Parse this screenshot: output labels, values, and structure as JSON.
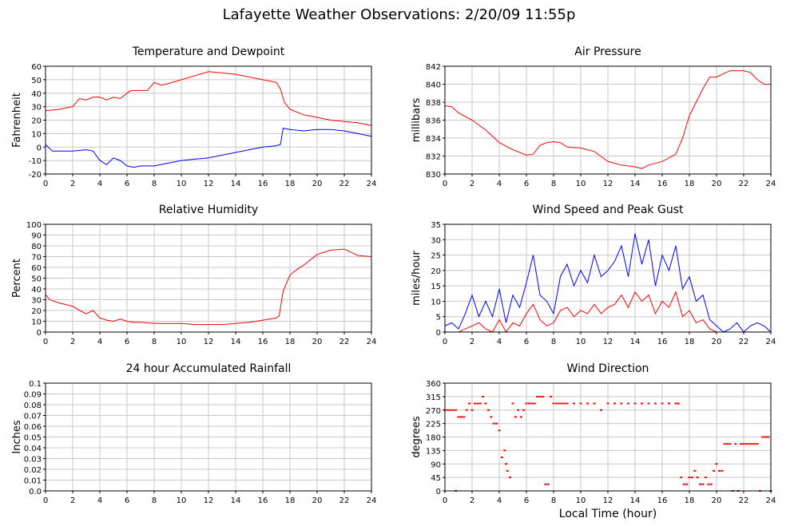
{
  "title": "Lafayette Weather Observations: 2/20/09 11:55p",
  "xlabel": "Local Time (hour)",
  "chart_data": [
    {
      "type": "line",
      "title": "Temperature and Dewpoint",
      "ylabel": "Fahrenheit",
      "xlim": [
        0,
        24
      ],
      "ylim": [
        -20,
        60
      ],
      "xticks": [
        0,
        2,
        4,
        6,
        8,
        10,
        12,
        14,
        16,
        18,
        20,
        22,
        24
      ],
      "yticks": [
        -20,
        -10,
        0,
        10,
        20,
        30,
        40,
        50,
        60
      ],
      "grid": true,
      "series": [
        {
          "color": "#ff0000",
          "x": [
            0,
            1,
            2,
            2.5,
            3,
            3.5,
            4,
            4.5,
            5,
            5.5,
            6,
            6.3,
            7,
            7.5,
            8,
            8.5,
            9,
            10,
            11,
            12,
            13,
            14,
            15,
            16,
            17,
            17.3,
            17.6,
            18,
            19,
            20,
            21,
            22,
            23,
            24
          ],
          "y": [
            27,
            28,
            30,
            36,
            35,
            37,
            37,
            35,
            37,
            36,
            40,
            42,
            42,
            42,
            48,
            46,
            47,
            50,
            53,
            56,
            55,
            54,
            52,
            50,
            48,
            43,
            33,
            28,
            24,
            22,
            20,
            19,
            18,
            16
          ]
        },
        {
          "color": "#0000ff",
          "x": [
            0,
            0.5,
            1,
            2,
            3,
            3.5,
            4,
            4.5,
            5,
            5.5,
            6,
            6.5,
            7,
            8,
            9,
            10,
            11,
            12,
            13,
            14,
            15,
            16,
            17,
            17.3,
            17.5,
            18,
            19,
            20,
            21,
            22,
            23,
            24
          ],
          "y": [
            2,
            -3,
            -3,
            -3,
            -2,
            -3,
            -10,
            -13,
            -8,
            -10,
            -14,
            -15,
            -14,
            -14,
            -12,
            -10,
            -9,
            -8,
            -6,
            -4,
            -2,
            0,
            1,
            2,
            14,
            13,
            12,
            13,
            13,
            12,
            10,
            8
          ]
        }
      ]
    },
    {
      "type": "line",
      "title": "Air Pressure",
      "ylabel": "millibars",
      "xlim": [
        0,
        24
      ],
      "ylim": [
        830,
        842
      ],
      "xticks": [
        0,
        2,
        4,
        6,
        8,
        10,
        12,
        14,
        16,
        18,
        20,
        22,
        24
      ],
      "yticks": [
        830,
        832,
        834,
        836,
        838,
        840,
        842
      ],
      "grid": true,
      "series": [
        {
          "color": "#ff0000",
          "x": [
            0,
            0.5,
            1,
            2,
            3,
            4,
            5,
            6,
            6.5,
            7,
            7.5,
            8,
            8.5,
            9,
            10,
            11,
            12,
            13,
            14,
            14.5,
            15,
            16,
            17,
            17.5,
            18,
            18.5,
            19,
            19.5,
            20,
            21,
            22,
            22.5,
            23,
            23.5,
            24
          ],
          "y": [
            837.6,
            837.5,
            836.8,
            836.0,
            834.9,
            833.5,
            832.7,
            832.1,
            832.2,
            833.2,
            833.5,
            833.6,
            833.5,
            833.0,
            832.9,
            832.5,
            831.4,
            831.0,
            830.8,
            830.6,
            831.0,
            831.4,
            832.2,
            834.0,
            836.5,
            838.0,
            839.5,
            840.8,
            840.8,
            841.5,
            841.5,
            841.3,
            840.5,
            840.0,
            840.0
          ]
        }
      ]
    },
    {
      "type": "line",
      "title": "Relative Humidity",
      "ylabel": "Percent",
      "xlim": [
        0,
        24
      ],
      "ylim": [
        0,
        100
      ],
      "xticks": [
        0,
        2,
        4,
        6,
        8,
        10,
        12,
        14,
        16,
        18,
        20,
        22,
        24
      ],
      "yticks": [
        0,
        10,
        20,
        30,
        40,
        50,
        60,
        70,
        80,
        90,
        100
      ],
      "grid": true,
      "series": [
        {
          "color": "#ff0000",
          "x": [
            0,
            0.3,
            1,
            2,
            2.5,
            3,
            3.5,
            4,
            4.5,
            5,
            5.5,
            6,
            6.5,
            7,
            8,
            9,
            10,
            11,
            12,
            13,
            14,
            15,
            16,
            17,
            17.2,
            17.5,
            18,
            18.5,
            19,
            20,
            21,
            22,
            23,
            24
          ],
          "y": [
            35,
            30,
            27,
            24,
            20,
            17,
            20,
            13,
            11,
            10,
            12,
            10,
            9,
            9,
            8,
            8,
            8,
            7,
            7,
            7,
            8,
            9,
            11,
            13,
            15,
            38,
            53,
            58,
            62,
            72,
            76,
            77,
            71,
            70
          ]
        }
      ]
    },
    {
      "type": "line",
      "title": "Wind Speed and Peak Gust",
      "ylabel": "miles/hour",
      "xlim": [
        0,
        24
      ],
      "ylim": [
        0,
        35
      ],
      "xticks": [
        0,
        2,
        4,
        6,
        8,
        10,
        12,
        14,
        16,
        18,
        20,
        22,
        24
      ],
      "yticks": [
        0,
        5,
        10,
        15,
        20,
        25,
        30,
        35
      ],
      "grid": true,
      "series": [
        {
          "color": "#0000ff",
          "x": [
            0,
            0.5,
            1,
            1.5,
            2,
            2.5,
            3,
            3.5,
            4,
            4.5,
            5,
            5.5,
            6,
            6.5,
            7,
            7.5,
            8,
            8.5,
            9,
            9.5,
            10,
            10.5,
            11,
            11.5,
            12,
            12.5,
            13,
            13.5,
            14,
            14.5,
            15,
            15.5,
            16,
            16.5,
            17,
            17.5,
            18,
            18.5,
            19,
            19.5,
            20,
            20.5,
            21,
            21.5,
            22,
            22.5,
            23,
            23.5,
            24
          ],
          "y": [
            2,
            3,
            1,
            6,
            12,
            5,
            10,
            5,
            14,
            3,
            12,
            8,
            16,
            25,
            12,
            10,
            6,
            18,
            22,
            15,
            20,
            16,
            25,
            18,
            20,
            23,
            28,
            18,
            32,
            22,
            30,
            15,
            25,
            20,
            28,
            14,
            18,
            10,
            12,
            4,
            2,
            0,
            1,
            3,
            0,
            2,
            3,
            2,
            0
          ]
        },
        {
          "color": "#ff0000",
          "x": [
            0,
            0.5,
            1,
            1.5,
            2,
            2.5,
            3,
            3.5,
            4,
            4.5,
            5,
            5.5,
            6,
            6.5,
            7,
            7.5,
            8,
            8.5,
            9,
            9.5,
            10,
            10.5,
            11,
            11.5,
            12,
            12.5,
            13,
            13.5,
            14,
            14.5,
            15,
            15.5,
            16,
            16.5,
            17,
            17.5,
            18,
            18.5,
            19,
            19.5,
            20,
            20.5,
            21,
            22,
            23,
            24
          ],
          "y": [
            0,
            0,
            0,
            1,
            2,
            3,
            1,
            0,
            4,
            0,
            3,
            2,
            6,
            9,
            4,
            2,
            3,
            7,
            8,
            5,
            7,
            6,
            9,
            6,
            8,
            9,
            12,
            8,
            13,
            10,
            12,
            6,
            10,
            8,
            13,
            5,
            7,
            3,
            4,
            1,
            0,
            0,
            0,
            0,
            0,
            0
          ]
        }
      ]
    },
    {
      "type": "line",
      "title": "24 hour Accumulated Rainfall",
      "ylabel": "Inches",
      "xlim": [
        0,
        24
      ],
      "ylim": [
        0,
        0.1
      ],
      "xticks": [
        0,
        2,
        4,
        6,
        8,
        10,
        12,
        14,
        16,
        18,
        20,
        22,
        24
      ],
      "yticks": [
        "0.0",
        "0.01",
        "0.02",
        "0.03",
        "0.04",
        "0.05",
        "0.06",
        "0.07",
        "0.08",
        "0.09",
        "0.1"
      ],
      "grid": true,
      "series": [
        {
          "color": "#ff0000",
          "x": [
            0,
            24
          ],
          "y": [
            0,
            0
          ]
        }
      ]
    },
    {
      "type": "scatter",
      "title": "Wind Direction",
      "ylabel": "degrees",
      "xlim": [
        0,
        24
      ],
      "ylim": [
        0,
        360
      ],
      "xticks": [
        0,
        2,
        4,
        6,
        8,
        10,
        12,
        14,
        16,
        18,
        20,
        22,
        24
      ],
      "yticks": [
        0,
        45,
        90,
        135,
        180,
        225,
        270,
        315,
        360
      ],
      "grid": true,
      "series": [
        {
          "color": "#ff0000",
          "x": [
            0,
            0.2,
            0.4,
            0.6,
            0.8,
            0.8,
            1.0,
            1.2,
            1.4,
            1.6,
            1.8,
            2.0,
            2.2,
            2.4,
            2.6,
            2.8,
            3.0,
            3.2,
            3.4,
            3.6,
            3.8,
            4.0,
            4.2,
            4.4,
            4.5,
            4.6,
            4.8,
            5.0,
            5.2,
            5.4,
            5.6,
            5.8,
            6.0,
            6.2,
            6.4,
            6.6,
            6.8,
            7.0,
            7.2,
            7.4,
            7.6,
            7.8,
            8.0,
            8.2,
            8.4,
            8.6,
            8.8,
            9.0,
            9.5,
            10.0,
            10.5,
            11.0,
            11.5,
            12.0,
            12.5,
            13.0,
            13.5,
            14.0,
            14.5,
            15.0,
            15.5,
            16.0,
            16.5,
            17.0,
            17.2,
            17.4,
            17.6,
            17.8,
            18.0,
            18.2,
            18.4,
            18.6,
            18.8,
            19.0,
            19.2,
            19.4,
            19.6,
            19.8,
            20.0,
            20.2,
            20.4,
            20.6,
            20.8,
            21.0,
            21.2,
            21.4,
            21.6,
            21.8,
            22.0,
            22.2,
            22.4,
            22.6,
            22.8,
            23.0,
            23.2,
            23.4,
            23.6,
            23.8,
            24.0
          ],
          "y": [
            270,
            270,
            270,
            270,
            270,
            0,
            247,
            247,
            247,
            270,
            292,
            270,
            292,
            292,
            292,
            315,
            292,
            270,
            247,
            225,
            225,
            202,
            112,
            135,
            90,
            67,
            45,
            292,
            247,
            270,
            247,
            270,
            292,
            292,
            292,
            292,
            315,
            315,
            315,
            22,
            22,
            315,
            292,
            292,
            292,
            292,
            292,
            292,
            292,
            292,
            292,
            292,
            270,
            292,
            292,
            292,
            292,
            292,
            292,
            292,
            292,
            292,
            292,
            292,
            292,
            45,
            22,
            22,
            45,
            45,
            67,
            45,
            22,
            22,
            45,
            22,
            22,
            67,
            90,
            67,
            67,
            157,
            157,
            157,
            0,
            157,
            0,
            157,
            157,
            157,
            157,
            157,
            157,
            157,
            0,
            180,
            180,
            180,
            0
          ]
        }
      ]
    }
  ]
}
